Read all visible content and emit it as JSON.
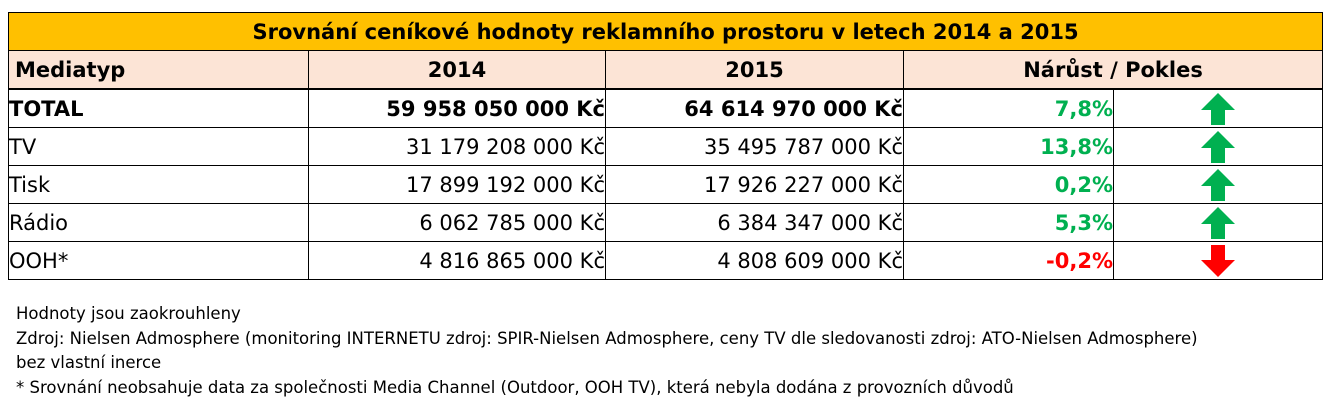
{
  "chart_data": {
    "type": "table",
    "title": "Srovnání ceníkové hodnoty reklamního prostoru v letech 2014 a 2015",
    "columns": [
      "Mediatyp",
      "2014",
      "2015",
      "Nárůst / Pokles"
    ],
    "rows": [
      {
        "mediatyp": "TOTAL",
        "y2014": "59 958 050 000 Kč",
        "y2015": "64 614 970 000 Kč",
        "change": "7,8%",
        "direction": "up",
        "bold": true
      },
      {
        "mediatyp": "TV",
        "y2014": "31 179 208 000 Kč",
        "y2015": "35 495 787 000 Kč",
        "change": "13,8%",
        "direction": "up",
        "bold": false
      },
      {
        "mediatyp": "Tisk",
        "y2014": "17 899 192 000 Kč",
        "y2015": "17 926 227 000 Kč",
        "change": "0,2%",
        "direction": "up",
        "bold": false
      },
      {
        "mediatyp": "Rádio",
        "y2014": "6 062 785 000 Kč",
        "y2015": "6 384 347 000 Kč",
        "change": "5,3%",
        "direction": "up",
        "bold": false
      },
      {
        "mediatyp": "OOH*",
        "y2014": "4 816 865 000 Kč",
        "y2015": "4 808 609 000 Kč",
        "change": "-0,2%",
        "direction": "down",
        "bold": false
      }
    ]
  },
  "notes": [
    "Hodnoty jsou zaokrouhleny",
    "Zdroj: Nielsen Admosphere (monitoring INTERNETU zdroj: SPIR-Nielsen Admosphere, ceny TV dle sledovanosti zdroj: ATO-Nielsen Admosphere)",
    "bez vlastní inerce",
    "* Srovnání neobsahuje data za společnosti Media Channel (Outdoor, OOH TV), která nebyla dodána z provozních důvodů"
  ],
  "colors": {
    "title_bg": "#ffc000",
    "header_bg": "#fce4d6",
    "up": "#00b050",
    "down": "#ff0000"
  },
  "icons": {
    "up": "arrow-up-icon",
    "down": "arrow-down-icon"
  }
}
